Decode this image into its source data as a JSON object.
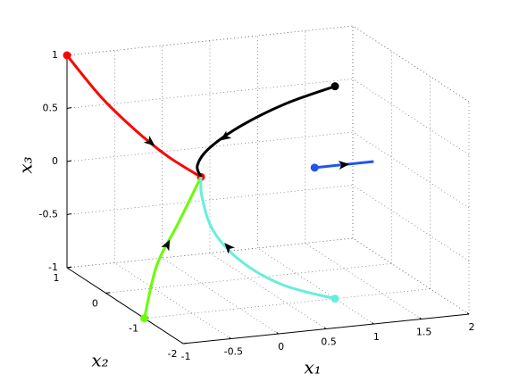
{
  "chart_data": {
    "type": "line3d",
    "xlabel": "x₁",
    "ylabel": "x₂",
    "zlabel": "x₃",
    "xlim": [
      -1,
      2
    ],
    "ylim": [
      -2,
      1
    ],
    "zlim": [
      -1,
      1
    ],
    "xticks": [
      -1,
      -0.5,
      0,
      0.5,
      1,
      1.5,
      2
    ],
    "yticks": [
      -2,
      -1,
      0,
      1
    ],
    "zticks": [
      -1,
      -0.5,
      0,
      0.5,
      1
    ],
    "grid": true,
    "series": [
      {
        "color": "#ff0000",
        "markers": "both",
        "x": [
          -1,
          -0.75,
          -0.5,
          -0.25,
          0
        ],
        "y": [
          1,
          0.75,
          0.5,
          0.25,
          0
        ],
        "z": [
          1,
          0.65,
          0.38,
          0.16,
          0
        ]
      },
      {
        "color": "#000000",
        "markers": "start",
        "x": [
          1,
          0.6,
          0.25,
          0.02,
          -0.05,
          0
        ],
        "y": [
          -1,
          -0.7,
          -0.4,
          -0.15,
          -0.03,
          0
        ],
        "z": [
          1,
          0.8,
          0.55,
          0.3,
          0.12,
          0
        ]
      },
      {
        "color": "#66ff00",
        "markers": "start",
        "x": [
          -1,
          -0.75,
          -0.4,
          0
        ],
        "y": [
          -1,
          -0.7,
          -0.4,
          0
        ],
        "z": [
          -1,
          -0.6,
          -0.3,
          0
        ]
      },
      {
        "color": "#66eedd",
        "markers": "start",
        "x": [
          1,
          0.5,
          0.15,
          -0.05,
          -0.05,
          0
        ],
        "y": [
          -1,
          -0.9,
          -0.7,
          -0.45,
          -0.15,
          0
        ],
        "z": [
          -1,
          -0.85,
          -0.65,
          -0.4,
          -0.15,
          0
        ]
      },
      {
        "color": "#2255ee",
        "markers": "start",
        "x": [
          1.16,
          1.78
        ],
        "y": [
          -0.08,
          -0.08
        ],
        "z": [
          0,
          0
        ]
      }
    ]
  }
}
